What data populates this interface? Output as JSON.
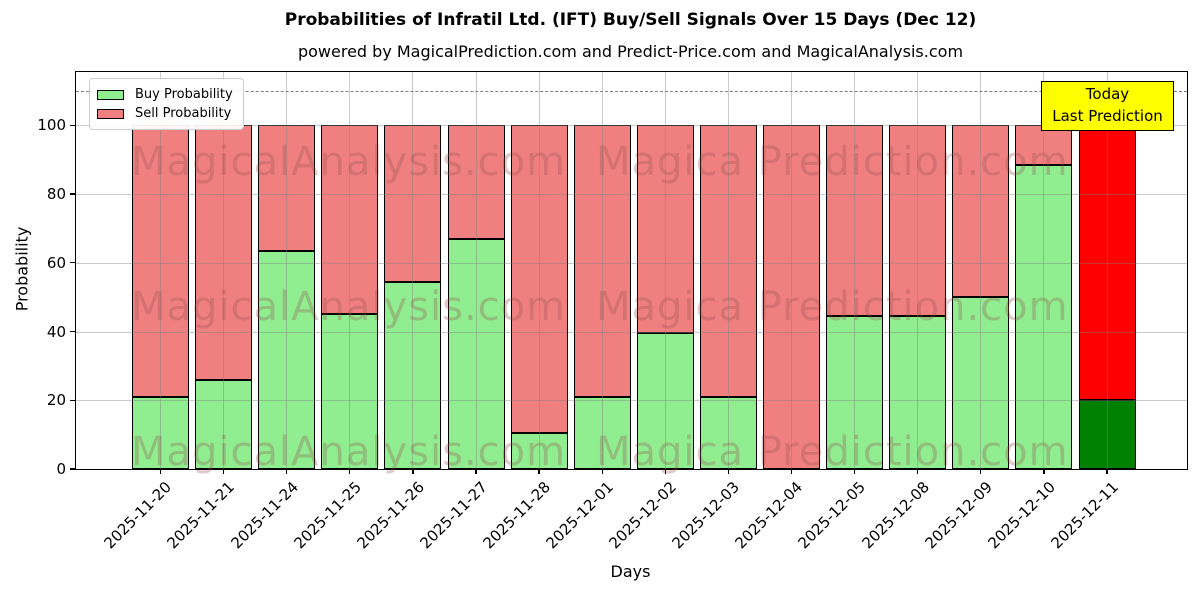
{
  "title": "Probabilities of Infratil Ltd. (IFT) Buy/Sell Signals Over 15 Days (Dec 12)",
  "subtitle": "powered by MagicalPrediction.com and Predict-Price.com and MagicalAnalysis.com",
  "legend": {
    "buy_label": "Buy Probability",
    "sell_label": "Sell Probability"
  },
  "annotation_box": {
    "line1": "Today",
    "line2": "Last Prediction"
  },
  "watermarks": {
    "left": "MagicalAnalysis.com",
    "right": "Magica Prediction.com"
  },
  "colors": {
    "buy": "#90EE90",
    "sell": "#F08080",
    "today_buy": "#008000",
    "today_sell": "#FF0000",
    "annotation_bg": "#FFFF00",
    "grid": "#808080",
    "edge": "#000000"
  },
  "chart_data": {
    "type": "bar",
    "stacked": true,
    "title": "Probabilities of Infratil Ltd. (IFT) Buy/Sell Signals Over 15 Days (Dec 12)",
    "xlabel": "Days",
    "ylabel": "Probability",
    "ylim": [
      0,
      115.5
    ],
    "yticks": [
      0,
      20,
      40,
      60,
      80,
      100
    ],
    "grid": true,
    "legend_position": "upper left",
    "dashed_threshold_y": 110,
    "categories": [
      "2025-11-20",
      "2025-11-21",
      "2025-11-24",
      "2025-11-25",
      "2025-11-26",
      "2025-11-27",
      "2025-11-28",
      "2025-12-01",
      "2025-12-02",
      "2025-12-03",
      "2025-12-04",
      "2025-12-05",
      "2025-12-08",
      "2025-12-09",
      "2025-12-10",
      "2025-12-11"
    ],
    "series": [
      {
        "name": "Buy Probability",
        "color": "#90EE90",
        "values": [
          21,
          26,
          63.5,
          45,
          54.5,
          67,
          10.5,
          21,
          39.5,
          21,
          0,
          44.5,
          44.5,
          50,
          88.5,
          20
        ]
      },
      {
        "name": "Sell Probability",
        "color": "#F08080",
        "values": [
          79,
          74,
          36.5,
          55,
          45.5,
          33,
          89.5,
          79,
          60.5,
          79,
          100,
          55.5,
          55.5,
          50,
          11.5,
          80
        ]
      }
    ],
    "today": {
      "index": 15,
      "buy_color": "#008000",
      "sell_color": "#FF0000"
    }
  }
}
